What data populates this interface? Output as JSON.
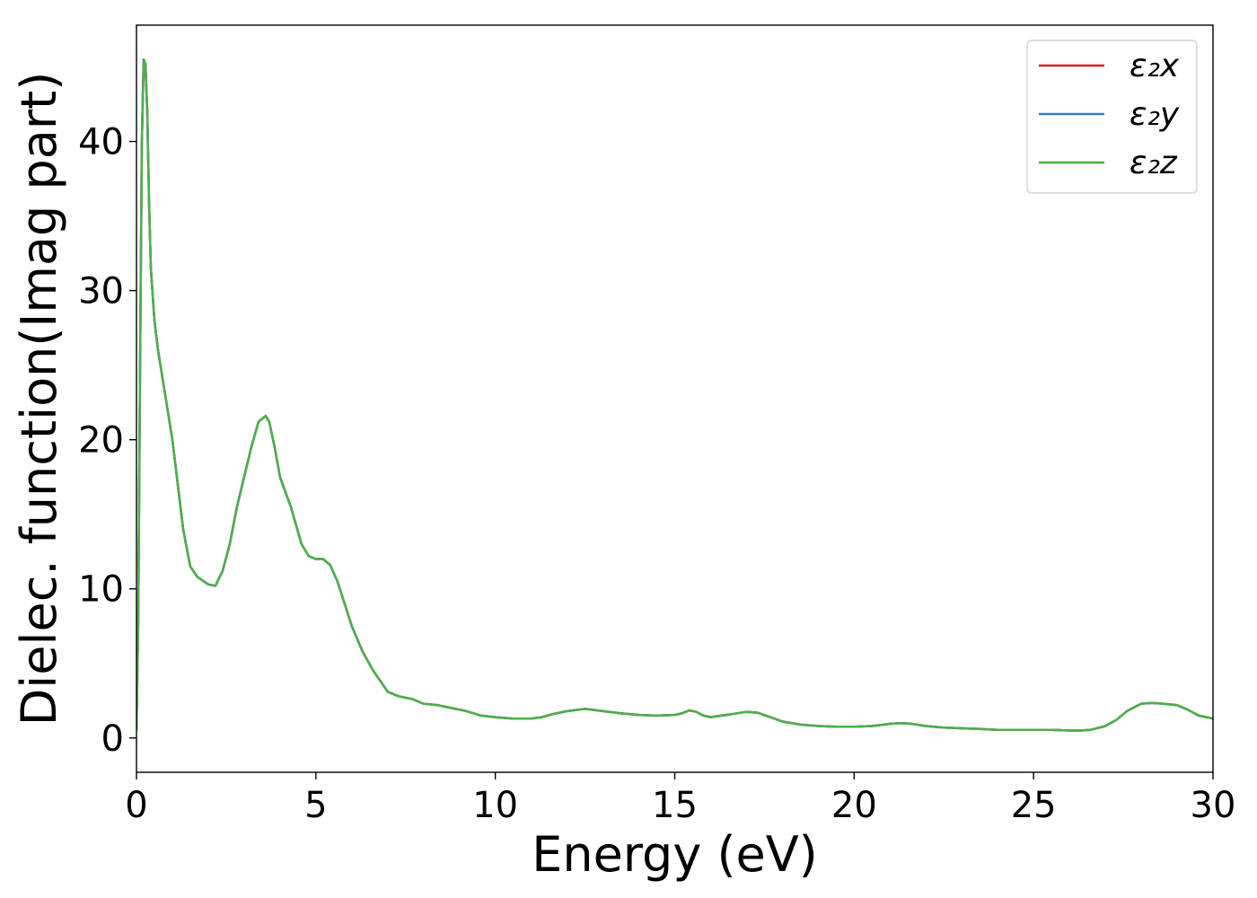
{
  "chart_data": {
    "type": "line",
    "xlabel": "Energy (eV)",
    "ylabel": "Dielec. function(Imag part)",
    "xlim": [
      0,
      30
    ],
    "ylim": [
      -2.3,
      47.8
    ],
    "xticks": [
      0,
      5,
      10,
      15,
      20,
      25,
      30
    ],
    "yticks": [
      0,
      10,
      20,
      30,
      40
    ],
    "grid": false,
    "legend_position": "top-right",
    "x": [
      0,
      0.05,
      0.1,
      0.15,
      0.2,
      0.25,
      0.3,
      0.35,
      0.4,
      0.5,
      0.6,
      0.8,
      1.0,
      1.1,
      1.3,
      1.5,
      1.7,
      2.0,
      2.2,
      2.4,
      2.6,
      2.8,
      3.0,
      3.2,
      3.4,
      3.6,
      3.7,
      3.85,
      4.0,
      4.3,
      4.6,
      4.8,
      5.0,
      5.2,
      5.4,
      5.6,
      5.8,
      6.0,
      6.3,
      6.6,
      7.0,
      7.3,
      7.7,
      8.0,
      8.4,
      8.8,
      9.2,
      9.6,
      10.0,
      10.5,
      11.0,
      11.3,
      11.6,
      12.0,
      12.5,
      13.0,
      13.5,
      14.0,
      14.5,
      15.0,
      15.2,
      15.4,
      15.6,
      15.8,
      16.0,
      16.3,
      16.6,
      17.0,
      17.3,
      17.6,
      18.0,
      18.5,
      19.0,
      19.5,
      20.0,
      20.5,
      21.0,
      21.3,
      21.6,
      22.0,
      22.5,
      23.0,
      23.5,
      24.0,
      24.5,
      25.0,
      25.5,
      26.0,
      26.3,
      26.6,
      27.0,
      27.3,
      27.6,
      28.0,
      28.3,
      28.6,
      29.0,
      29.3,
      29.6,
      30.0
    ],
    "series": [
      {
        "name": "ε₂x",
        "color": "#e41a1c",
        "values": [
          0.5,
          8,
          25,
          40,
          45.5,
          45.2,
          42,
          36,
          31.5,
          28,
          26,
          23,
          20,
          18,
          14,
          11.5,
          10.8,
          10.3,
          10.2,
          11.2,
          13,
          15.5,
          17.5,
          19.5,
          21.2,
          21.6,
          21.2,
          19.5,
          17.5,
          15.5,
          13,
          12.2,
          12.0,
          12.0,
          11.6,
          10.5,
          9,
          7.5,
          5.8,
          4.5,
          3.1,
          2.8,
          2.6,
          2.3,
          2.2,
          2.0,
          1.8,
          1.5,
          1.4,
          1.3,
          1.3,
          1.4,
          1.6,
          1.8,
          1.95,
          1.8,
          1.65,
          1.55,
          1.5,
          1.55,
          1.65,
          1.85,
          1.75,
          1.5,
          1.4,
          1.5,
          1.6,
          1.75,
          1.7,
          1.45,
          1.1,
          0.9,
          0.8,
          0.75,
          0.75,
          0.8,
          0.95,
          1.0,
          0.95,
          0.8,
          0.7,
          0.65,
          0.6,
          0.55,
          0.55,
          0.55,
          0.55,
          0.5,
          0.5,
          0.55,
          0.8,
          1.2,
          1.8,
          2.3,
          2.35,
          2.3,
          2.2,
          1.9,
          1.5,
          1.3
        ]
      },
      {
        "name": "ε₂y",
        "color": "#377eb8",
        "values": [
          0.5,
          8,
          25,
          40,
          45.5,
          45.2,
          42,
          36,
          31.5,
          28,
          26,
          23,
          20,
          18,
          14,
          11.5,
          10.8,
          10.3,
          10.2,
          11.2,
          13,
          15.5,
          17.5,
          19.5,
          21.2,
          21.6,
          21.2,
          19.5,
          17.5,
          15.5,
          13,
          12.2,
          12.0,
          12.0,
          11.6,
          10.5,
          9,
          7.5,
          5.8,
          4.5,
          3.1,
          2.8,
          2.6,
          2.3,
          2.2,
          2.0,
          1.8,
          1.5,
          1.4,
          1.3,
          1.3,
          1.4,
          1.6,
          1.8,
          1.95,
          1.8,
          1.65,
          1.55,
          1.5,
          1.55,
          1.65,
          1.85,
          1.75,
          1.5,
          1.4,
          1.5,
          1.6,
          1.75,
          1.7,
          1.45,
          1.1,
          0.9,
          0.8,
          0.75,
          0.75,
          0.8,
          0.95,
          1.0,
          0.95,
          0.8,
          0.7,
          0.65,
          0.6,
          0.55,
          0.55,
          0.55,
          0.55,
          0.5,
          0.5,
          0.55,
          0.8,
          1.2,
          1.8,
          2.3,
          2.35,
          2.3,
          2.2,
          1.9,
          1.5,
          1.3
        ]
      },
      {
        "name": "ε₂z",
        "color": "#4daf4a",
        "values": [
          0.5,
          8,
          25,
          40,
          45.5,
          45.2,
          42,
          36,
          31.5,
          28,
          26,
          23,
          20,
          18,
          14,
          11.5,
          10.8,
          10.3,
          10.2,
          11.2,
          13,
          15.5,
          17.5,
          19.5,
          21.2,
          21.6,
          21.2,
          19.5,
          17.5,
          15.5,
          13,
          12.2,
          12.0,
          12.0,
          11.6,
          10.5,
          9,
          7.5,
          5.8,
          4.5,
          3.1,
          2.8,
          2.6,
          2.3,
          2.2,
          2.0,
          1.8,
          1.5,
          1.4,
          1.3,
          1.3,
          1.4,
          1.6,
          1.8,
          1.95,
          1.8,
          1.65,
          1.55,
          1.5,
          1.55,
          1.65,
          1.85,
          1.75,
          1.5,
          1.4,
          1.5,
          1.6,
          1.75,
          1.7,
          1.45,
          1.1,
          0.9,
          0.8,
          0.75,
          0.75,
          0.8,
          0.95,
          1.0,
          0.95,
          0.8,
          0.7,
          0.65,
          0.6,
          0.55,
          0.55,
          0.55,
          0.55,
          0.5,
          0.5,
          0.55,
          0.8,
          1.2,
          1.8,
          2.3,
          2.35,
          2.3,
          2.2,
          1.9,
          1.5,
          1.3
        ]
      }
    ]
  }
}
